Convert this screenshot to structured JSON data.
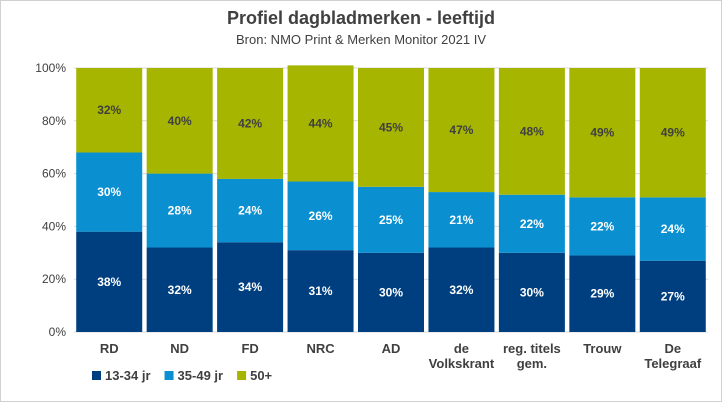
{
  "chart_data": {
    "type": "bar",
    "stacked": true,
    "title": "Profiel dagbladmerken - leeftijd",
    "subtitle": "Bron: NMO Print & Merken Monitor 2021 IV",
    "categories": [
      [
        "RD"
      ],
      [
        "ND"
      ],
      [
        "FD"
      ],
      [
        "NRC"
      ],
      [
        "AD"
      ],
      [
        "de",
        "Volkskrant"
      ],
      [
        "reg. titels",
        "gem."
      ],
      [
        "Trouw"
      ],
      [
        "De",
        "Telegraaf"
      ]
    ],
    "series": [
      {
        "name": "13-34 jr",
        "color": "#003f7f",
        "label_color": "#ffffff",
        "values": [
          38,
          32,
          34,
          31,
          30,
          32,
          30,
          29,
          27
        ]
      },
      {
        "name": "35-49 jr",
        "color": "#0a8fd0",
        "label_color": "#ffffff",
        "values": [
          30,
          28,
          24,
          26,
          25,
          21,
          22,
          22,
          24
        ]
      },
      {
        "name": "50+",
        "color": "#a6b500",
        "label_color": "#404040",
        "values": [
          32,
          40,
          42,
          44,
          45,
          47,
          48,
          49,
          49
        ]
      }
    ],
    "ylim": [
      0,
      100
    ],
    "yticks": [
      "0%",
      "20%",
      "40%",
      "60%",
      "80%",
      "100%"
    ],
    "grid": true,
    "legend_position": "bottom-left"
  }
}
